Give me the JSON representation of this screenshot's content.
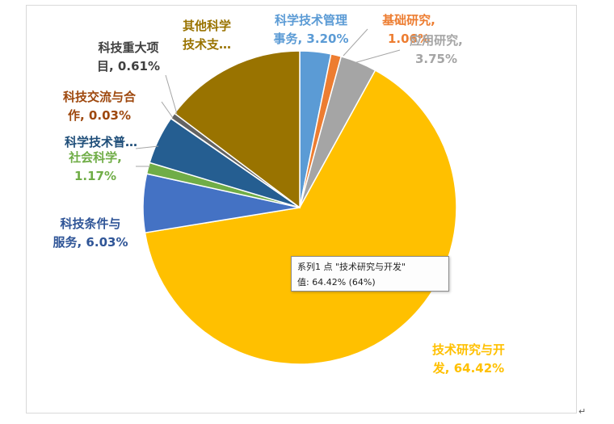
{
  "chart_data": {
    "type": "pie",
    "slices": [
      {
        "name": "科学技术管理事务",
        "value": 3.2,
        "color": "#5b9bd5",
        "label_lines": [
          "科学技术管理",
          "事务, 3.20%"
        ],
        "label_color": "#5b9bd5"
      },
      {
        "name": "基础研究",
        "value": 1.06,
        "color": "#ed7d31",
        "label_lines": [
          "基础研究,",
          "1.06%"
        ],
        "label_color": "#ed7d31"
      },
      {
        "name": "应用研究",
        "value": 3.75,
        "color": "#a5a5a5",
        "label_lines": [
          "应用研究,",
          "3.75%"
        ],
        "label_color": "#a5a5a5"
      },
      {
        "name": "技术研究与开发",
        "value": 64.42,
        "color": "#ffc000",
        "label_lines": [
          "技术研究与开",
          "发, 64.42%"
        ],
        "label_color": "#ffc000"
      },
      {
        "name": "科技条件与服务",
        "value": 6.03,
        "color": "#4472c4",
        "label_lines": [
          "科技条件与",
          "服务, 6.03%"
        ],
        "label_color": "#2f5597"
      },
      {
        "name": "社会科学",
        "value": 1.17,
        "color": "#70ad47",
        "label_lines": [
          "社会科学,",
          "1.17%"
        ],
        "label_color": "#70ad47"
      },
      {
        "name": "科学技术普及",
        "value": 5.0,
        "color": "#255e91",
        "label_lines": [
          "科学技术普…"
        ],
        "label_color": "#1f4e79"
      },
      {
        "name": "科技交流与合作",
        "value": 0.03,
        "color": "#9e480e",
        "label_lines": [
          "科技交流与合",
          "作, 0.03%"
        ],
        "label_color": "#9e480e"
      },
      {
        "name": "科技重大项目",
        "value": 0.61,
        "color": "#636363",
        "label_lines": [
          "科技重大项",
          "目, 0.61%"
        ],
        "label_color": "#404040"
      },
      {
        "name": "其他科学技术支出",
        "value": 14.73,
        "color": "#997300",
        "label_lines": [
          "其他科学",
          "技术支…"
        ],
        "label_color": "#997300"
      }
    ]
  },
  "tooltip": {
    "line1": "系列1 点 \"技术研究与开发\"",
    "line2": "值: 64.42% (64%)"
  },
  "paragraph_mark": "↵"
}
